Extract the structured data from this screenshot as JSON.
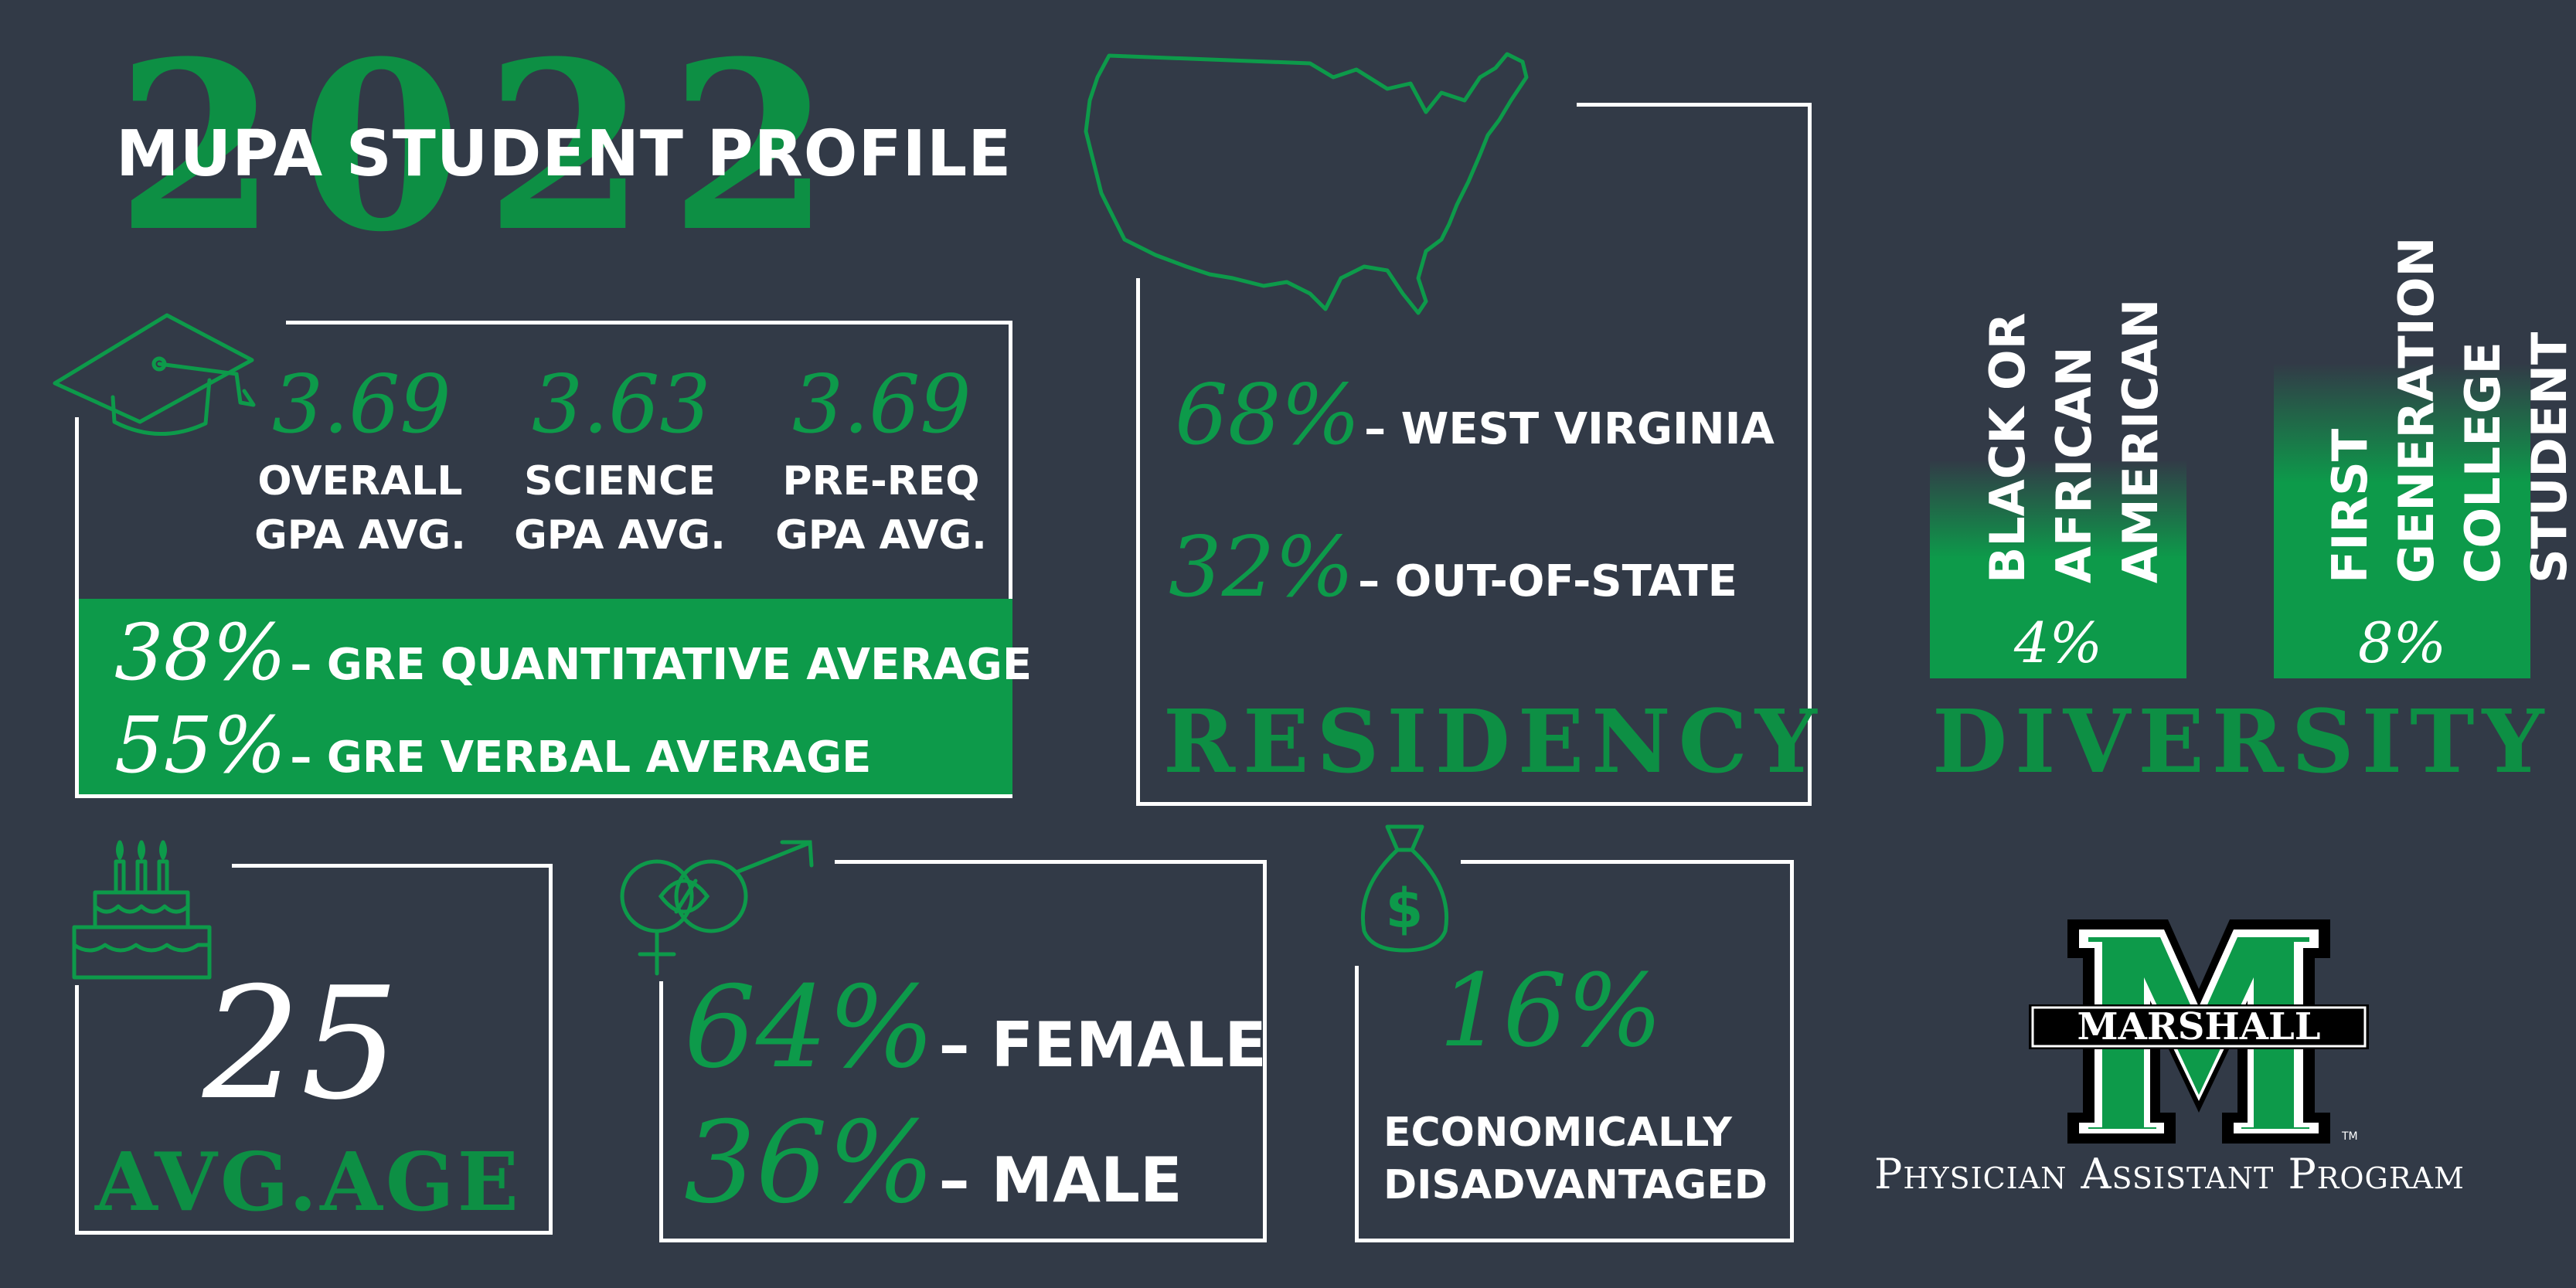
{
  "header": {
    "year": "2022",
    "title": "MUPA STUDENT PROFILE"
  },
  "gpa": {
    "items": [
      {
        "value": "3.69",
        "line1": "OVERALL",
        "line2": "GPA AVG."
      },
      {
        "value": "3.63",
        "line1": "SCIENCE",
        "line2": "GPA AVG."
      },
      {
        "value": "3.69",
        "line1": "PRE-REQ",
        "line2": "GPA AVG."
      }
    ],
    "gre": [
      {
        "value": "38%",
        "label": "– GRE QUANTITATIVE AVERAGE"
      },
      {
        "value": "55%",
        "label": "– GRE VERBAL AVERAGE"
      }
    ]
  },
  "residency": {
    "items": [
      {
        "value": "68%",
        "label": "– WEST VIRGINIA"
      },
      {
        "value": "32%",
        "label": "– OUT-OF-STATE"
      }
    ],
    "heading": "RESIDENCY"
  },
  "diversity": {
    "bars": [
      {
        "line1": "BLACK OR",
        "line2": "AFRICAN AMERICAN",
        "value": "4%"
      },
      {
        "line1": "FIRST GENERATION",
        "line2": "COLLEGE STUDENT",
        "value": "8%"
      }
    ],
    "heading": "DIVERSITY"
  },
  "age": {
    "value": "25",
    "heading": "AVG.AGE"
  },
  "gender": {
    "items": [
      {
        "value": "64%",
        "label": "– FEMALE"
      },
      {
        "value": "36%",
        "label": "– MALE"
      }
    ]
  },
  "economic": {
    "value": "16%",
    "line1": "ECONOMICALLY",
    "line2": "DISADVANTAGED"
  },
  "logo": {
    "wordmark": "MARSHALL",
    "tm": "TM",
    "program": "Physician Assistant Program"
  },
  "colors": {
    "background": "#323a47",
    "green": "#0d9a4a",
    "dark_green": "#0d8f44",
    "white": "#ffffff"
  },
  "icons": [
    "graduation-cap-icon",
    "usa-map-icon",
    "birthday-cake-icon",
    "gender-symbols-icon",
    "money-bag-icon",
    "marshall-m-logo"
  ]
}
